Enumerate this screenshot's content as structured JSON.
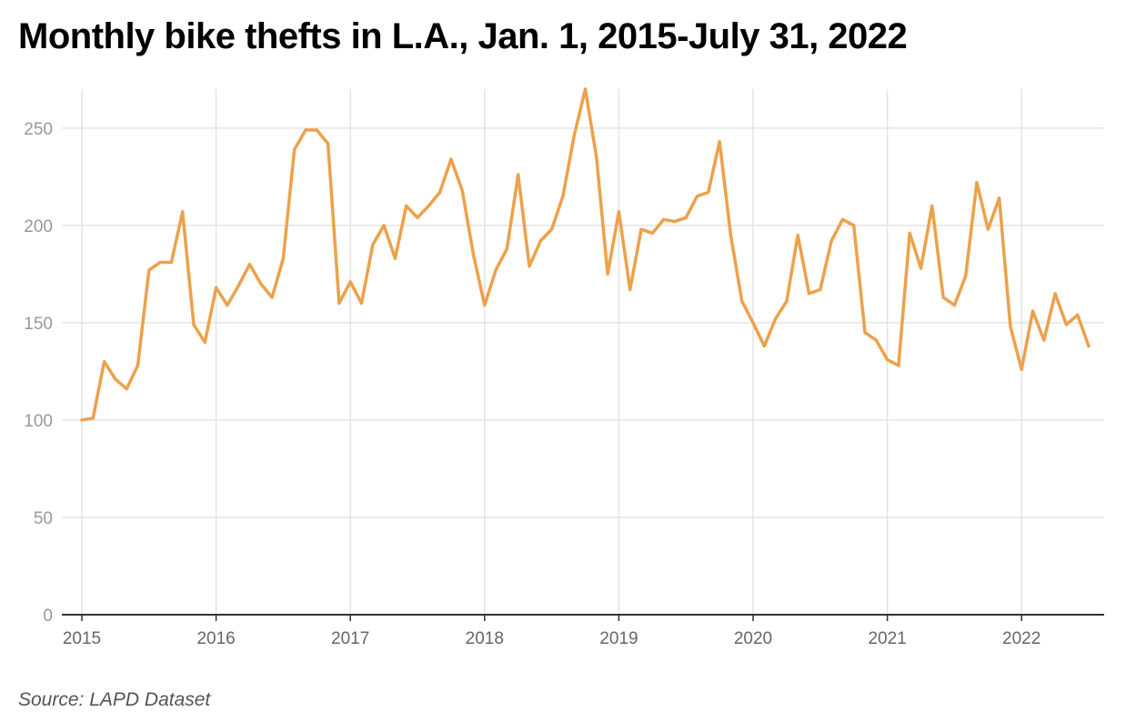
{
  "title": "Monthly bike thefts in L.A., Jan. 1, 2015-July 31, 2022",
  "source": "Source: LAPD Dataset",
  "colors": {
    "line": "#EDA14A",
    "grid": "#E4E4E4",
    "axis": "#333333",
    "tick_text": "#999999",
    "x_tick_text": "#666666"
  },
  "chart_data": {
    "type": "line",
    "title": "Monthly bike thefts in L.A., Jan. 1, 2015-July 31, 2022",
    "xlabel": "",
    "ylabel": "",
    "x_start": "2015-01",
    "x_end": "2022-07",
    "x_ticks": [
      "2015",
      "2016",
      "2017",
      "2018",
      "2019",
      "2020",
      "2021",
      "2022"
    ],
    "y_ticks": [
      0,
      50,
      100,
      150,
      200,
      250
    ],
    "ylim": [
      0,
      270
    ],
    "grid": true,
    "series": [
      {
        "values": [
          100,
          101,
          130,
          121,
          116,
          128,
          177,
          181,
          181,
          207,
          149,
          140,
          168,
          159,
          169,
          180,
          170,
          163,
          183,
          239,
          249,
          249,
          242,
          160,
          171,
          160,
          190,
          200,
          183,
          210,
          204,
          210,
          217,
          234,
          218,
          185,
          159,
          177,
          188,
          226,
          179,
          192,
          198,
          215,
          246,
          270,
          235,
          175,
          207,
          167,
          198,
          196,
          203,
          202,
          204,
          215,
          217,
          243,
          195,
          161,
          150,
          138,
          152,
          161,
          195,
          165,
          167,
          192,
          203,
          200,
          145,
          141,
          131,
          128,
          196,
          178,
          210,
          163,
          159,
          174,
          222,
          198,
          214,
          148,
          126,
          156,
          141,
          165,
          149,
          154,
          138
        ]
      }
    ]
  }
}
